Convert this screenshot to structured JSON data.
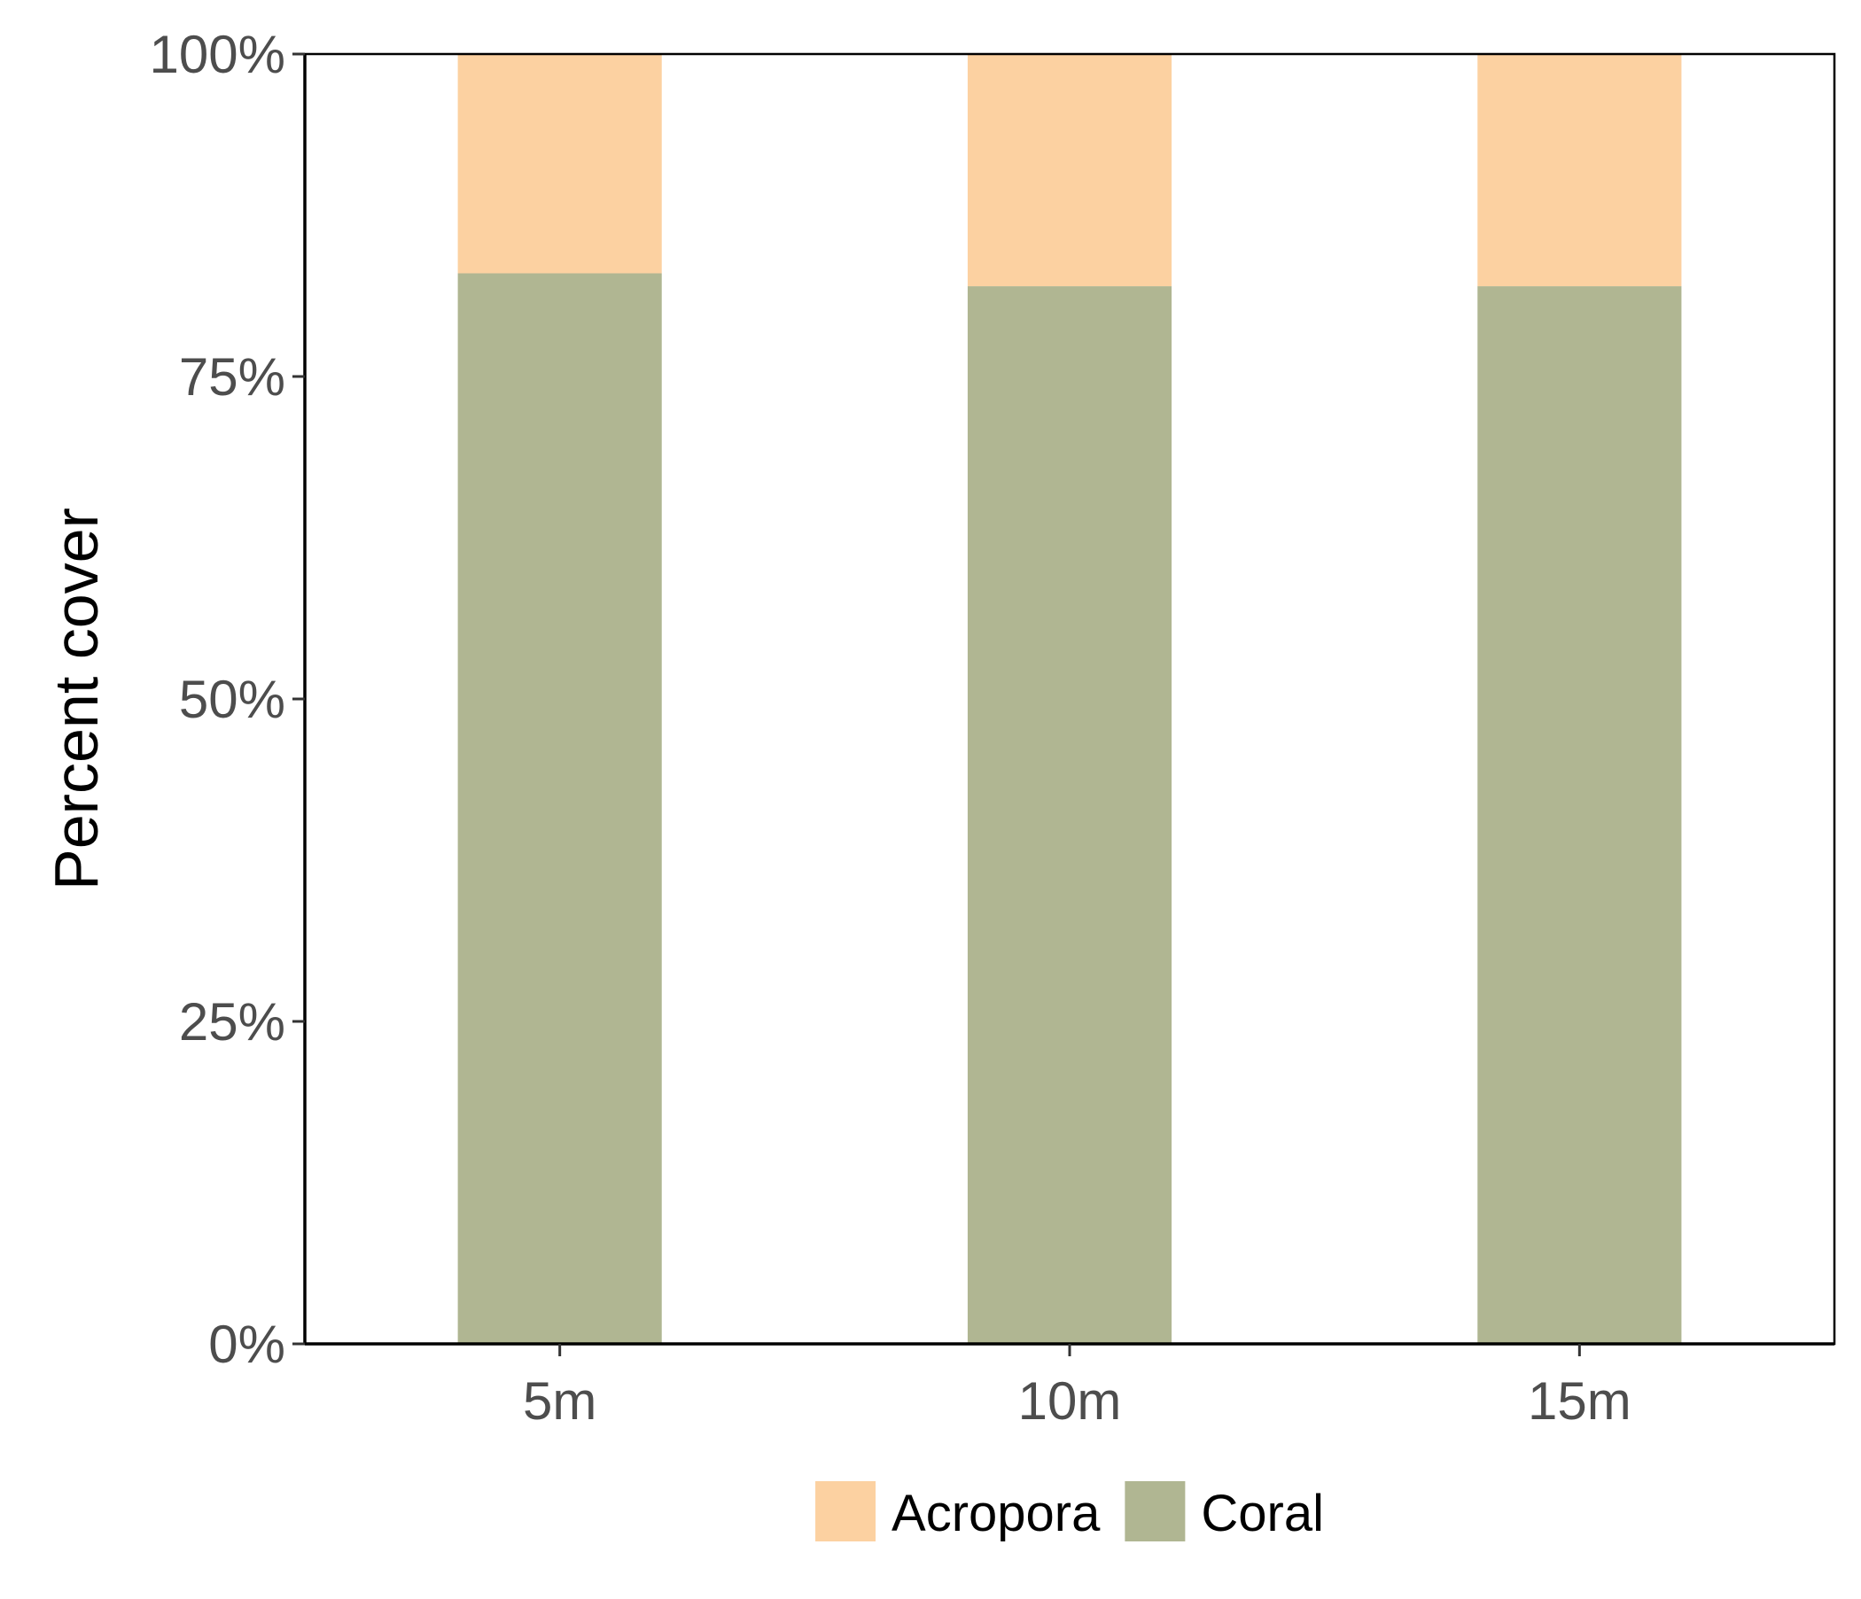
{
  "chart_data": {
    "type": "bar",
    "stacked": true,
    "categories": [
      "5m",
      "10m",
      "15m"
    ],
    "series": [
      {
        "name": "Coral",
        "values": [
          83,
          82,
          82
        ],
        "color": "#b0b692"
      },
      {
        "name": "Acropora",
        "values": [
          17,
          18,
          18
        ],
        "color": "#fcd1a1"
      }
    ],
    "title": "",
    "xlabel": "",
    "ylabel": "Percent cover",
    "ylim": [
      0,
      100
    ],
    "yticks": [
      0,
      25,
      50,
      75,
      100
    ],
    "ytick_labels": [
      "0%",
      "25%",
      "50%",
      "75%",
      "100%"
    ],
    "grid": false,
    "legend": {
      "position": "bottom",
      "entries": [
        {
          "label": "Acropora",
          "color": "#fcd1a1"
        },
        {
          "label": "Coral",
          "color": "#b0b692"
        }
      ]
    }
  }
}
